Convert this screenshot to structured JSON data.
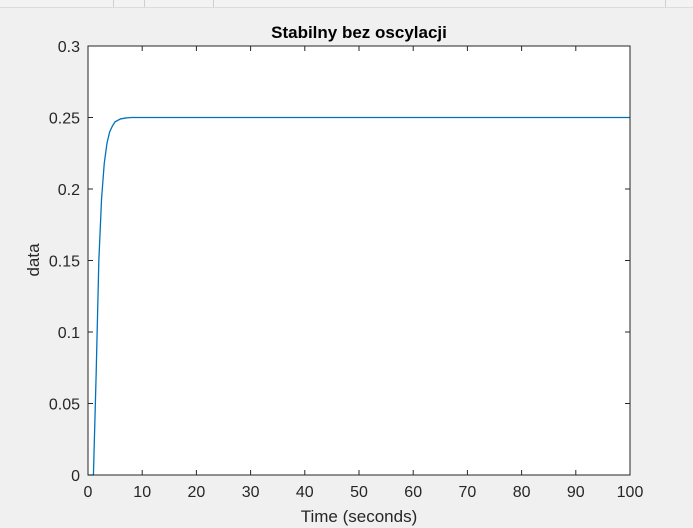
{
  "chart_data": {
    "type": "line",
    "title": "Stabilny bez oscylacji",
    "xlabel": "Time (seconds)",
    "ylabel": "data",
    "xlim": [
      0,
      100
    ],
    "ylim": [
      0,
      0.3
    ],
    "xticks": [
      0,
      10,
      20,
      30,
      40,
      50,
      60,
      70,
      80,
      90,
      100
    ],
    "xtick_labels": [
      "0",
      "10",
      "20",
      "30",
      "40",
      "50",
      "60",
      "70",
      "80",
      "90",
      "100"
    ],
    "yticks": [
      0,
      0.05,
      0.1,
      0.15,
      0.2,
      0.25,
      0.3
    ],
    "ytick_labels": [
      "0",
      "0.05",
      "0.1",
      "0.15",
      "0.2",
      "0.25",
      "0.3"
    ],
    "grid": false,
    "series": [
      {
        "color": "#0072bd",
        "x": [
          0,
          1,
          1.5,
          2,
          2.5,
          3,
          3.5,
          4,
          4.5,
          5,
          6,
          7,
          8,
          9,
          10,
          15,
          20,
          30,
          40,
          50,
          60,
          70,
          80,
          90,
          100
        ],
        "y": [
          0,
          0,
          0.07,
          0.15,
          0.193,
          0.218,
          0.232,
          0.24,
          0.244,
          0.247,
          0.249,
          0.2497,
          0.25,
          0.25,
          0.25,
          0.25,
          0.25,
          0.25,
          0.25,
          0.25,
          0.25,
          0.25,
          0.25,
          0.25,
          0.25
        ]
      }
    ]
  }
}
